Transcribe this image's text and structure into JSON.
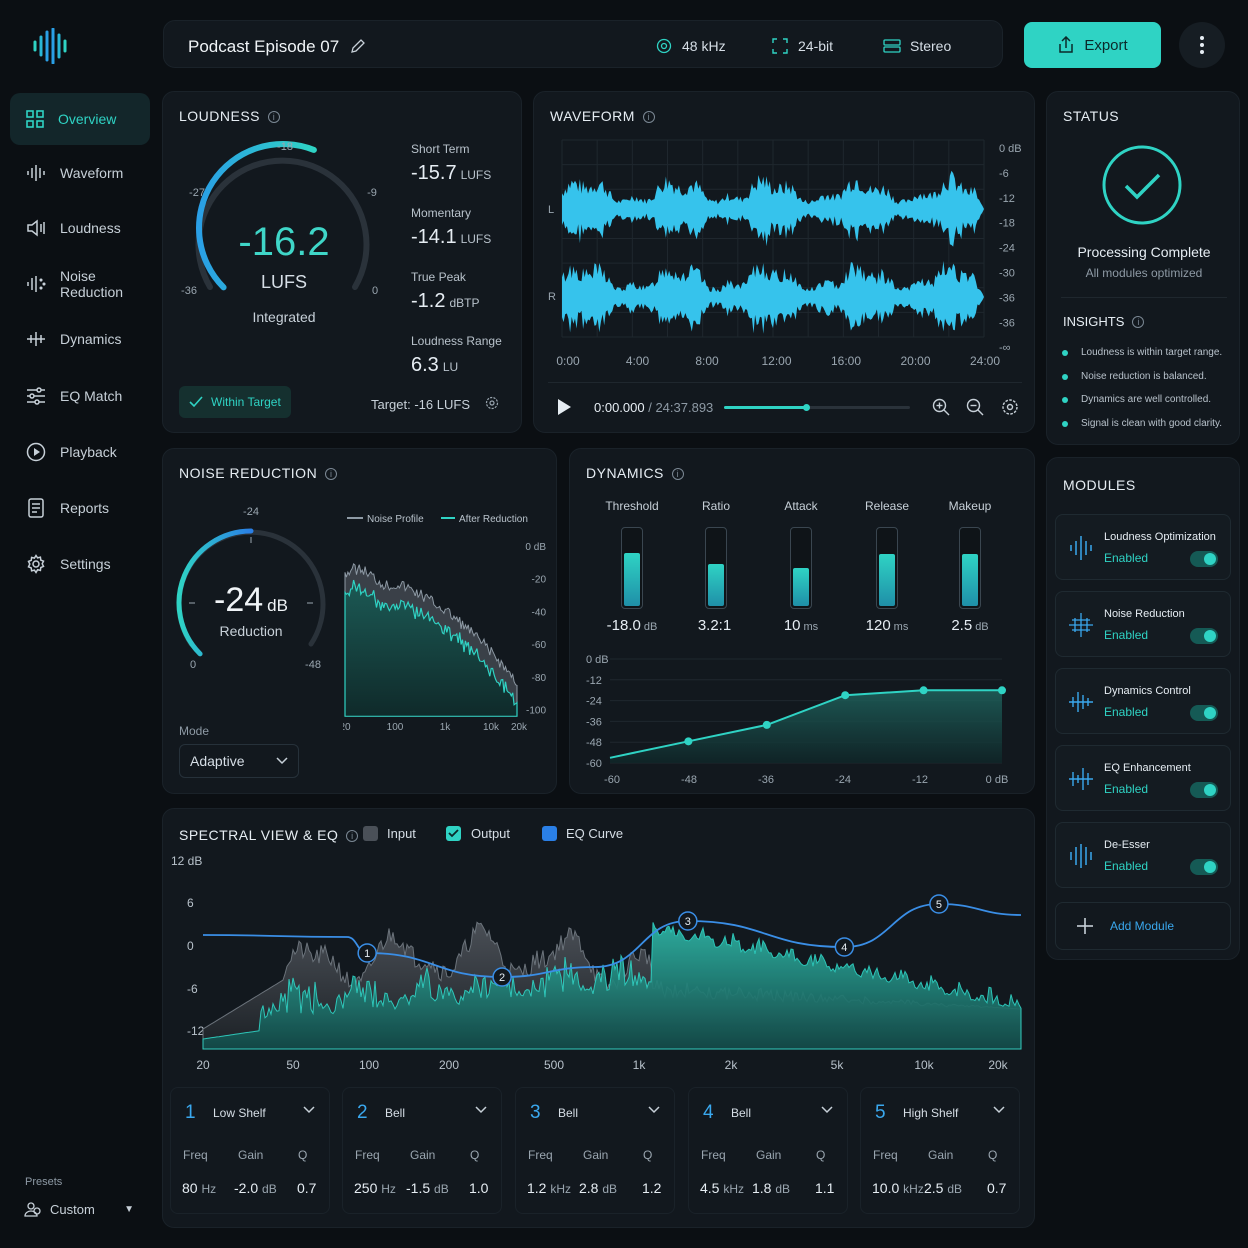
{
  "header": {
    "title": "Podcast Episode 07",
    "sample_rate": "48 kHz",
    "bit_depth": "24-bit",
    "channels": "Stereo",
    "export_label": "Export"
  },
  "nav": {
    "items": [
      {
        "label": "Overview",
        "icon": "grid-icon",
        "active": true
      },
      {
        "label": "Waveform",
        "icon": "waveform-icon"
      },
      {
        "label": "Loudness",
        "icon": "speaker-icon"
      },
      {
        "label": "Noise Reduction",
        "icon": "noise-icon"
      },
      {
        "label": "Dynamics",
        "icon": "dynamics-icon"
      },
      {
        "label": "EQ Match",
        "icon": "sliders-icon"
      },
      {
        "label": "Playback",
        "icon": "play-icon"
      },
      {
        "label": "Reports",
        "icon": "report-icon"
      },
      {
        "label": "Settings",
        "icon": "gear-icon"
      }
    ],
    "presets_label": "Presets",
    "preset_value": "Custom"
  },
  "loudness": {
    "title": "LOUDNESS",
    "value": "-16.2",
    "unit": "LUFS",
    "label": "Integrated",
    "gauge_ticks": [
      "-36",
      "-27",
      "-18",
      "-9",
      "0"
    ],
    "gauge_fill": 0.58,
    "stats": [
      {
        "label": "Short Term",
        "value": "-15.7",
        "unit": "LUFS"
      },
      {
        "label": "Momentary",
        "value": "-14.1",
        "unit": "LUFS"
      },
      {
        "label": "True Peak",
        "value": "-1.2",
        "unit": "dBTP"
      },
      {
        "label": "Loudness Range",
        "value": "6.3",
        "unit": "LU"
      }
    ],
    "badge": "Within Target",
    "target": "Target: -16 LUFS"
  },
  "waveform": {
    "title": "WAVEFORM",
    "channel_left": "L",
    "channel_right": "R",
    "db_scale": [
      "0 dB",
      "-6",
      "-12",
      "-18",
      "-24",
      "-30",
      "-36",
      "-36",
      "-∞"
    ],
    "time_ticks": [
      "0:00",
      "4:00",
      "8:00",
      "12:00",
      "16:00",
      "20:00",
      "24:00"
    ],
    "current_time": "0:00.000",
    "duration": "24:37.893",
    "progress": 0.44
  },
  "status": {
    "title": "STATUS",
    "headline": "Processing Complete",
    "sub": "All modules optimized",
    "insights_title": "INSIGHTS",
    "insights": [
      "Loudness is within target range.",
      "Noise reduction is balanced.",
      "Dynamics are well controlled.",
      "Signal is clean with good clarity."
    ]
  },
  "modules": {
    "title": "MODULES",
    "items": [
      {
        "name": "Loudness Optimization",
        "state": "Enabled"
      },
      {
        "name": "Noise Reduction",
        "state": "Enabled"
      },
      {
        "name": "Dynamics Control",
        "state": "Enabled"
      },
      {
        "name": "EQ Enhancement",
        "state": "Enabled"
      },
      {
        "name": "De-Esser",
        "state": "Enabled"
      }
    ],
    "add_label": "Add Module"
  },
  "noise": {
    "title": "NOISE REDUCTION",
    "value": "-24",
    "unit": "dB",
    "label": "Reduction",
    "gauge_ticks": [
      "0",
      "-24",
      "-48"
    ],
    "gauge_fill": 0.5,
    "legend": [
      "Noise Profile",
      "After Reduction"
    ],
    "db_axis": [
      "0 dB",
      "-20",
      "-40",
      "-60",
      "-80",
      "-100"
    ],
    "freq_axis": [
      "20",
      "100",
      "1k",
      "10k",
      "20k"
    ],
    "mode_label": "Mode",
    "mode_value": "Adaptive"
  },
  "dynamics": {
    "title": "DYNAMICS",
    "params": [
      {
        "label": "Threshold",
        "value": "-18.0",
        "unit": "dB",
        "level": 0.7
      },
      {
        "label": "Ratio",
        "value": "3.2:1",
        "unit": "",
        "level": 0.55
      },
      {
        "label": "Attack",
        "value": "10",
        "unit": "ms",
        "level": 0.5
      },
      {
        "label": "Release",
        "value": "120",
        "unit": "ms",
        "level": 0.68
      },
      {
        "label": "Makeup",
        "value": "2.5",
        "unit": "dB",
        "level": 0.68
      }
    ],
    "y_axis": [
      "0 dB",
      "-12",
      "-24",
      "-36",
      "-48",
      "-60"
    ],
    "x_axis": [
      "-60",
      "-48",
      "-36",
      "-24",
      "-12",
      "0 dB"
    ]
  },
  "spectral": {
    "title": "SPECTRAL VIEW & EQ",
    "legend": [
      "Input",
      "Output",
      "EQ Curve"
    ],
    "y_axis": [
      "12 dB",
      "6",
      "0",
      "-6",
      "-12"
    ],
    "x_axis": [
      "20",
      "50",
      "100",
      "200",
      "500",
      "1k",
      "2k",
      "5k",
      "10k",
      "20k"
    ],
    "bands": [
      {
        "num": "1",
        "type": "Low Shelf",
        "freq": "80",
        "freq_unit": "Hz",
        "gain": "-2.0",
        "gain_unit": "dB",
        "q": "0.7"
      },
      {
        "num": "2",
        "type": "Bell",
        "freq": "250",
        "freq_unit": "Hz",
        "gain": "-1.5",
        "gain_unit": "dB",
        "q": "1.0"
      },
      {
        "num": "3",
        "type": "Bell",
        "freq": "1.2",
        "freq_unit": "kHz",
        "gain": "2.8",
        "gain_unit": "dB",
        "q": "1.2"
      },
      {
        "num": "4",
        "type": "Bell",
        "freq": "4.5",
        "freq_unit": "kHz",
        "gain": "1.8",
        "gain_unit": "dB",
        "q": "1.1"
      },
      {
        "num": "5",
        "type": "High Shelf",
        "freq": "10.0",
        "freq_unit": "kHz",
        "gain": "2.5",
        "gain_unit": "dB",
        "q": "0.7"
      }
    ],
    "col_freq": "Freq",
    "col_gain": "Gain",
    "col_q": "Q"
  }
}
